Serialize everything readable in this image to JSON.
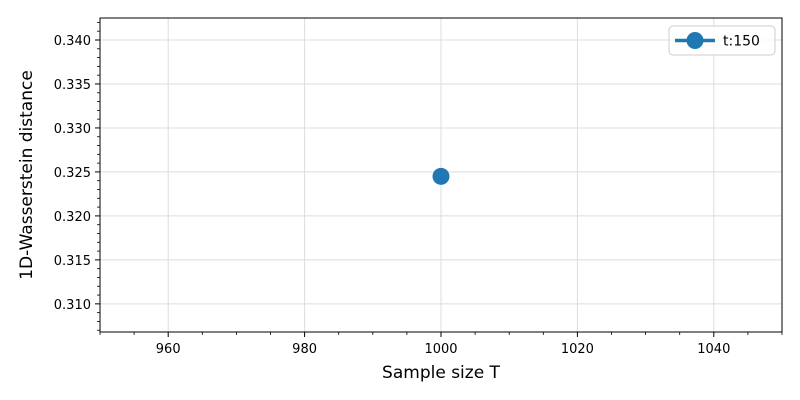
{
  "chart_data": {
    "type": "line",
    "xlabel": "Sample size T",
    "ylabel": "1D-Wasserstein distance",
    "xlim": [
      950,
      1050
    ],
    "ylim": [
      0.3068,
      0.3425
    ],
    "xticks": [
      960,
      980,
      1000,
      1020,
      1040
    ],
    "yticks": [
      0.31,
      0.315,
      0.32,
      0.325,
      0.33,
      0.335,
      0.34
    ],
    "grid": true,
    "legend_position": "top-right",
    "series": [
      {
        "name": "t:150",
        "color": "#1f77b4",
        "marker": "circle",
        "x": [
          1000
        ],
        "y": [
          0.3245
        ]
      }
    ]
  }
}
